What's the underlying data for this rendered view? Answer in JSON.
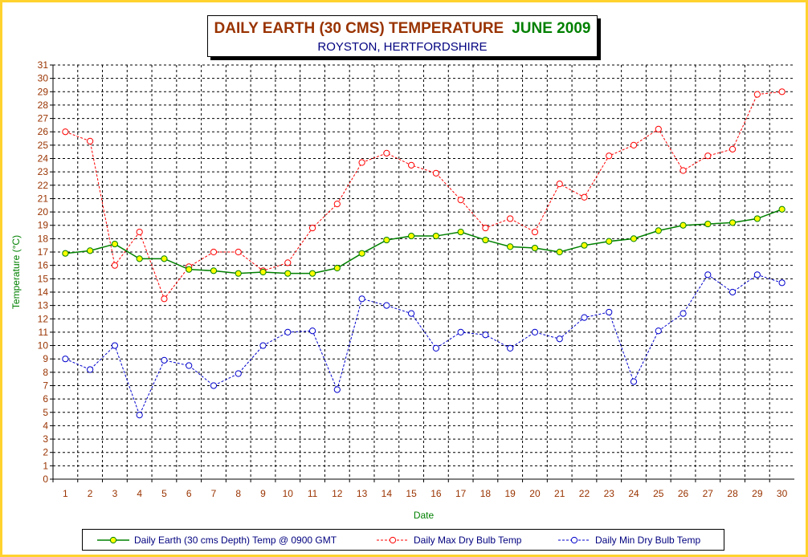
{
  "title": {
    "main": "DAILY EARTH (30 CMS) TEMPERATURE",
    "month": "JUNE 2009",
    "subtitle": "ROYSTON, HERTFORDSHIRE"
  },
  "colors": {
    "frame": "#ffd22e",
    "earth_line": "#008000",
    "earth_marker": "#ffff00",
    "max_series": "#ff0000",
    "min_series": "#0000cc",
    "axis_text": "#993300",
    "axis_label": "#008000",
    "legend_text": "#000080"
  },
  "chart_data": {
    "type": "line",
    "title": "DAILY EARTH (30 CMS) TEMPERATURE JUNE 2009",
    "subtitle": "ROYSTON, HERTFORDSHIRE",
    "xlabel": "Date",
    "ylabel": "Temperature (°C)",
    "ylim": [
      0,
      31
    ],
    "grid": true,
    "legend_position": "bottom",
    "x": [
      1,
      2,
      3,
      4,
      5,
      6,
      7,
      8,
      9,
      10,
      11,
      12,
      13,
      14,
      15,
      16,
      17,
      18,
      19,
      20,
      21,
      22,
      23,
      24,
      25,
      26,
      27,
      28,
      29,
      30
    ],
    "series": [
      {
        "name": "Daily Earth (30 cms Depth) Temp @ 0900 GMT",
        "style": "solid-yellow-markers",
        "values": [
          16.9,
          17.1,
          17.6,
          16.5,
          16.5,
          15.7,
          15.6,
          15.4,
          15.5,
          15.4,
          15.4,
          15.8,
          16.9,
          17.9,
          18.2,
          18.2,
          18.5,
          17.9,
          17.4,
          17.3,
          17.0,
          17.5,
          17.8,
          18.0,
          18.6,
          19.0,
          19.1,
          19.2,
          19.5,
          20.2
        ]
      },
      {
        "name": "Daily Max Dry Bulb Temp",
        "style": "dashed-red-circles",
        "values": [
          26.0,
          25.3,
          16.0,
          18.5,
          13.5,
          15.9,
          17.0,
          17.0,
          15.6,
          16.2,
          18.8,
          20.6,
          23.7,
          24.4,
          23.5,
          22.9,
          20.9,
          18.8,
          19.5,
          18.5,
          22.1,
          21.1,
          24.2,
          25.0,
          26.2,
          23.1,
          24.2,
          24.7,
          28.8,
          29.0
        ]
      },
      {
        "name": "Daily Min Dry Bulb Temp",
        "style": "dashed-blue-circles",
        "values": [
          9.0,
          8.2,
          10.0,
          4.8,
          8.9,
          8.5,
          7.0,
          7.9,
          10.0,
          11.0,
          11.1,
          6.7,
          13.5,
          13.0,
          12.4,
          9.8,
          11.0,
          10.8,
          9.8,
          11.0,
          10.5,
          12.1,
          12.5,
          7.3,
          11.1,
          12.4,
          15.3,
          14.0,
          15.3,
          14.7
        ]
      }
    ]
  }
}
